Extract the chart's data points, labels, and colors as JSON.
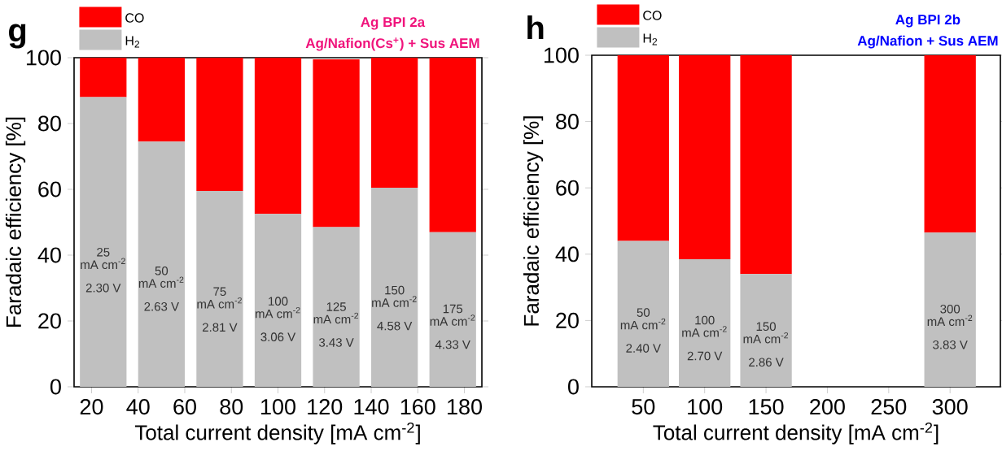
{
  "chart_data": [
    {
      "type": "bar",
      "title": "Ag BPI 2a",
      "subtitle": "Ag/Nafion(Cs$^{+}$) + Sus AEM",
      "xlabel": "Total current density [mA cm$^{-2}$]",
      "ylabel": "Faradaic efficiency [%]",
      "x": [
        25,
        50,
        75,
        100,
        125,
        150,
        175
      ],
      "stacked": true,
      "legend": "top left",
      "xlim": [
        12.5,
        187.5
      ],
      "xticks": [
        20,
        40,
        60,
        80,
        100,
        120,
        140,
        160,
        180
      ],
      "ylim": [
        0,
        100
      ],
      "yticks": [
        0,
        20,
        40,
        60,
        80,
        100
      ],
      "series": [
        {
          "name": "H$_{2}$",
          "color": "#c0c0c0",
          "values": [
            88,
            74.5,
            59.5,
            52.5,
            48.5,
            60.5,
            47
          ]
        },
        {
          "name": "CO",
          "color": "#ff0000",
          "values": [
            12,
            25.5,
            40.5,
            47.5,
            51,
            39.5,
            53
          ]
        }
      ],
      "annotations": [
        "g",
        "25",
        "mA cm$^{-2}$",
        "2.30 V",
        "50",
        "mA cm$^{-2}$",
        "2.63 V",
        "75",
        "mA cm$^{-2}$",
        "2.81 V",
        "100",
        "mA cm$^{-2}$",
        "3.06 V",
        "125",
        "mA cm$^{-2}$",
        "3.43 V",
        "150",
        "mA cm$^{-2}$",
        "4.58 V",
        "175",
        "mA cm$^{-2}$",
        "4.33 V"
      ]
    },
    {
      "type": "bar",
      "title": "Ag BPI 2b",
      "subtitle": "Ag/Nafion + Sus AEM",
      "xlabel": "Total current density [mA cm$^{-2}$]",
      "ylabel": "Faradaic efficiency [%]",
      "x": [
        50,
        100,
        150,
        300
      ],
      "stacked": true,
      "legend": "top left",
      "xlim": [
        8,
        341
      ],
      "xticks": [
        50,
        100,
        150,
        200,
        250,
        300
      ],
      "ylim": [
        0,
        100
      ],
      "yticks": [
        0,
        20,
        40,
        60,
        80,
        100
      ],
      "series": [
        {
          "name": "H$_{2}$",
          "color": "#c0c0c0",
          "values": [
            44,
            38.5,
            34,
            46.5
          ]
        },
        {
          "name": "CO",
          "color": "#ff0000",
          "values": [
            56,
            61.5,
            66,
            53.5
          ]
        }
      ],
      "annotations": [
        "h",
        "50",
        "mA cm$^{-2}$",
        "2.40 V",
        "100",
        "mA cm$^{-2}$",
        "2.70 V",
        "150",
        "mA cm$^{-2}$",
        "2.86 V",
        "300",
        "mA cm$^{-2}$",
        "3.83 V"
      ]
    }
  ]
}
